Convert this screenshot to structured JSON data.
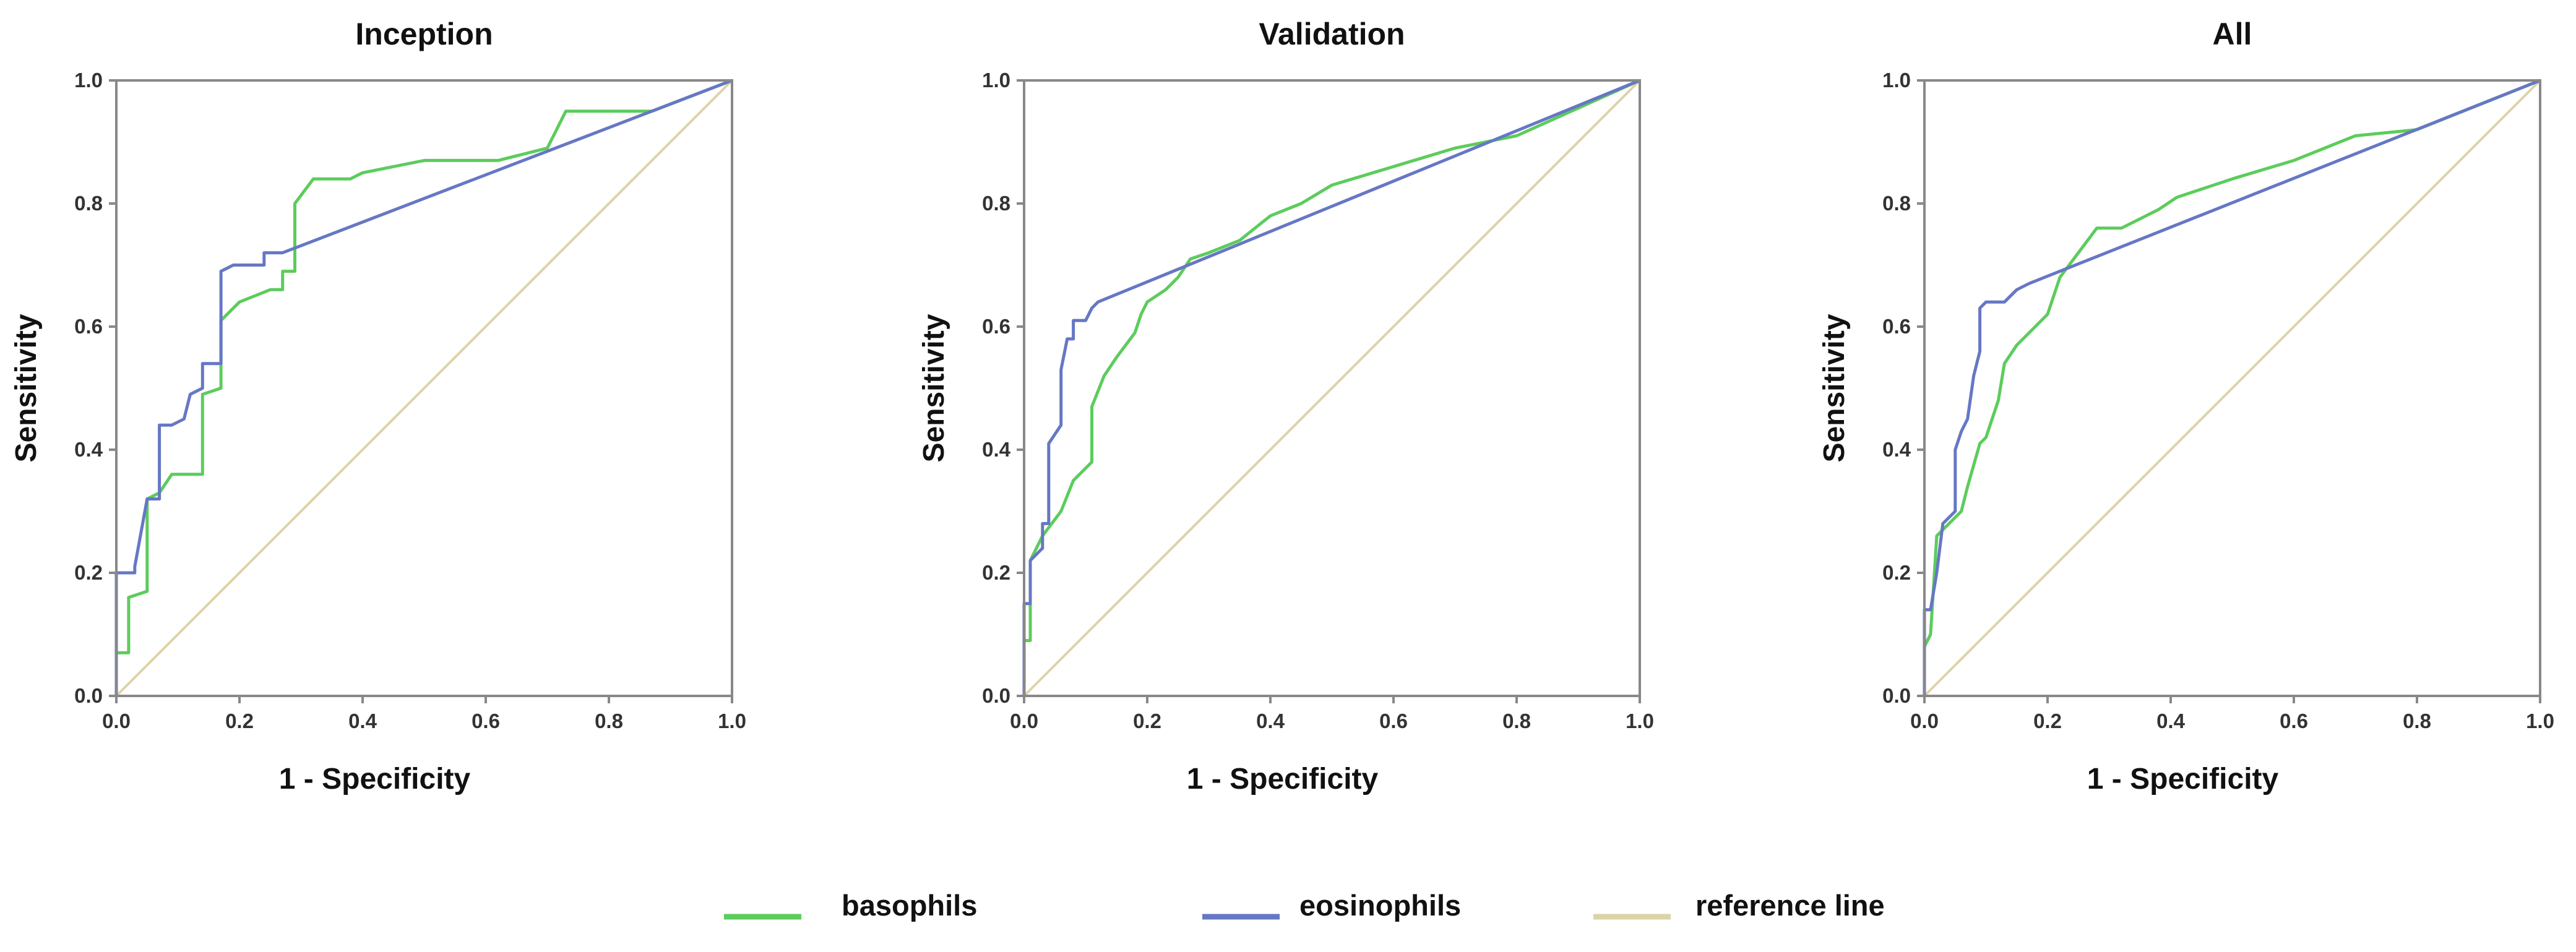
{
  "colors": {
    "basophils": "#5ccc5c",
    "eosinophils": "#6677c4",
    "reference": "#ddd3a8"
  },
  "legend": [
    {
      "key": "basophils",
      "label": "basophils"
    },
    {
      "key": "eosinophils",
      "label": "eosinophils"
    },
    {
      "key": "reference",
      "label": "reference line"
    }
  ],
  "chart_data": [
    {
      "type": "line",
      "title": "Inception",
      "xlabel": "1 - Specificity",
      "ylabel": "Sensitivity",
      "xlim": [
        0,
        1
      ],
      "ylim": [
        0,
        1
      ],
      "xticks": [
        "0.0",
        "0.2",
        "0.4",
        "0.6",
        "0.8",
        "1.0"
      ],
      "yticks": [
        "0.0",
        "0.2",
        "0.4",
        "0.6",
        "0.8",
        "1.0"
      ],
      "grid": false,
      "series": [
        {
          "name": "basophils",
          "key": "basophils",
          "x": [
            0,
            0,
            0.02,
            0.02,
            0.05,
            0.05,
            0.07,
            0.09,
            0.14,
            0.14,
            0.17,
            0.17,
            0.2,
            0.25,
            0.27,
            0.27,
            0.29,
            0.29,
            0.32,
            0.38,
            0.4,
            0.5,
            0.62,
            0.7,
            0.73,
            0.87,
            1.0
          ],
          "y": [
            0,
            0.07,
            0.07,
            0.16,
            0.17,
            0.32,
            0.33,
            0.36,
            0.36,
            0.49,
            0.5,
            0.61,
            0.64,
            0.66,
            0.66,
            0.69,
            0.69,
            0.8,
            0.84,
            0.84,
            0.85,
            0.87,
            0.87,
            0.89,
            0.95,
            0.95,
            1.0
          ]
        },
        {
          "name": "eosinophils",
          "key": "eosinophils",
          "x": [
            0,
            0,
            0.03,
            0.03,
            0.05,
            0.07,
            0.07,
            0.09,
            0.11,
            0.12,
            0.14,
            0.14,
            0.17,
            0.17,
            0.19,
            0.24,
            0.24,
            0.27,
            1.0
          ],
          "y": [
            0,
            0.2,
            0.2,
            0.21,
            0.32,
            0.32,
            0.44,
            0.44,
            0.45,
            0.49,
            0.5,
            0.54,
            0.54,
            0.69,
            0.7,
            0.7,
            0.72,
            0.72,
            1.0
          ]
        },
        {
          "name": "reference line",
          "key": "reference",
          "x": [
            0,
            1
          ],
          "y": [
            0,
            1
          ]
        }
      ]
    },
    {
      "type": "line",
      "title": "Validation",
      "xlabel": "1 - Specificity",
      "ylabel": "Sensitivity",
      "xlim": [
        0,
        1
      ],
      "ylim": [
        0,
        1
      ],
      "xticks": [
        "0.0",
        "0.2",
        "0.4",
        "0.6",
        "0.8",
        "1.0"
      ],
      "yticks": [
        "0.0",
        "0.2",
        "0.4",
        "0.6",
        "0.8",
        "1.0"
      ],
      "grid": false,
      "series": [
        {
          "name": "basophils",
          "key": "basophils",
          "x": [
            0,
            0,
            0.01,
            0.01,
            0.03,
            0.06,
            0.08,
            0.11,
            0.11,
            0.13,
            0.15,
            0.18,
            0.19,
            0.2,
            0.23,
            0.25,
            0.27,
            0.3,
            0.35,
            0.4,
            0.45,
            0.5,
            0.6,
            0.7,
            0.8,
            1.0
          ],
          "y": [
            0,
            0.09,
            0.09,
            0.22,
            0.26,
            0.3,
            0.35,
            0.38,
            0.47,
            0.52,
            0.55,
            0.59,
            0.62,
            0.64,
            0.66,
            0.68,
            0.71,
            0.72,
            0.74,
            0.78,
            0.8,
            0.83,
            0.86,
            0.89,
            0.91,
            1.0
          ]
        },
        {
          "name": "eosinophils",
          "key": "eosinophils",
          "x": [
            0,
            0,
            0.01,
            0.01,
            0.03,
            0.03,
            0.04,
            0.04,
            0.06,
            0.06,
            0.07,
            0.08,
            0.08,
            0.1,
            0.11,
            0.12,
            1.0
          ],
          "y": [
            0,
            0.15,
            0.15,
            0.22,
            0.24,
            0.28,
            0.28,
            0.41,
            0.44,
            0.53,
            0.58,
            0.58,
            0.61,
            0.61,
            0.63,
            0.64,
            1.0
          ]
        },
        {
          "name": "reference line",
          "key": "reference",
          "x": [
            0,
            1
          ],
          "y": [
            0,
            1
          ]
        }
      ]
    },
    {
      "type": "line",
      "title": "All",
      "xlabel": "1 - Specificity",
      "ylabel": "Sensitivity",
      "xlim": [
        0,
        1
      ],
      "ylim": [
        0,
        1
      ],
      "xticks": [
        "0.0",
        "0.2",
        "0.4",
        "0.6",
        "0.8",
        "1.0"
      ],
      "yticks": [
        "0.0",
        "0.2",
        "0.4",
        "0.6",
        "0.8",
        "1.0"
      ],
      "grid": false,
      "series": [
        {
          "name": "basophils",
          "key": "basophils",
          "x": [
            0,
            0,
            0.01,
            0.02,
            0.04,
            0.06,
            0.07,
            0.09,
            0.1,
            0.12,
            0.13,
            0.15,
            0.17,
            0.2,
            0.22,
            0.25,
            0.28,
            0.32,
            0.38,
            0.41,
            0.5,
            0.6,
            0.7,
            0.8,
            1.0
          ],
          "y": [
            0,
            0.08,
            0.1,
            0.26,
            0.28,
            0.3,
            0.34,
            0.41,
            0.42,
            0.48,
            0.54,
            0.57,
            0.59,
            0.62,
            0.68,
            0.72,
            0.76,
            0.76,
            0.79,
            0.81,
            0.84,
            0.87,
            0.91,
            0.92,
            1.0
          ]
        },
        {
          "name": "eosinophils",
          "key": "eosinophils",
          "x": [
            0,
            0,
            0.01,
            0.02,
            0.03,
            0.04,
            0.05,
            0.05,
            0.06,
            0.07,
            0.08,
            0.09,
            0.09,
            0.1,
            0.13,
            0.15,
            0.17,
            1.0
          ],
          "y": [
            0,
            0.14,
            0.14,
            0.2,
            0.28,
            0.29,
            0.3,
            0.4,
            0.43,
            0.45,
            0.52,
            0.56,
            0.63,
            0.64,
            0.64,
            0.66,
            0.67,
            1.0
          ]
        },
        {
          "name": "reference line",
          "key": "reference",
          "x": [
            0,
            1
          ],
          "y": [
            0,
            1
          ]
        }
      ]
    }
  ]
}
